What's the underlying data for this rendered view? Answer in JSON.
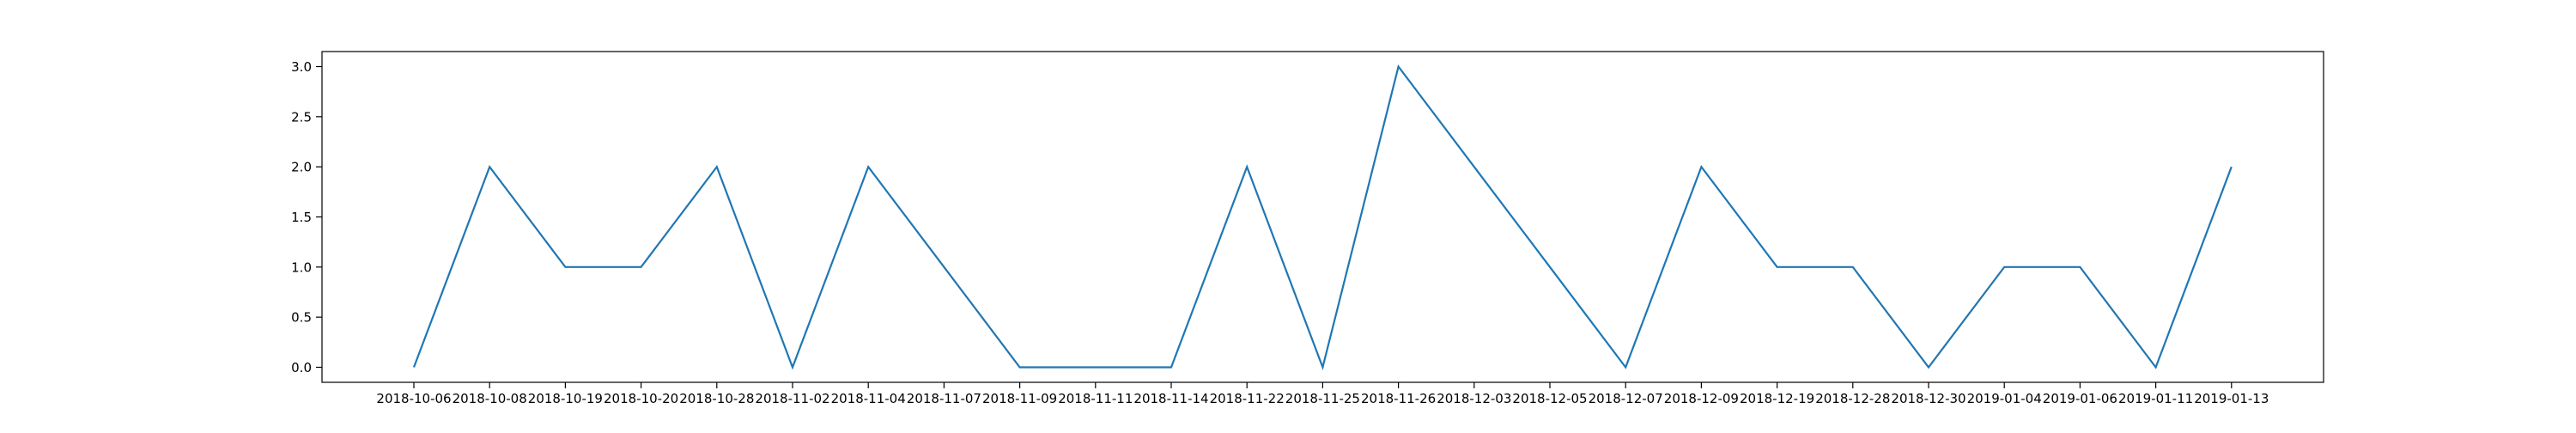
{
  "chart_data": {
    "type": "line",
    "title": "",
    "xlabel": "",
    "ylabel": "",
    "categories": [
      "2018-10-06",
      "2018-10-08",
      "2018-10-19",
      "2018-10-20",
      "2018-10-28",
      "2018-11-02",
      "2018-11-04",
      "2018-11-07",
      "2018-11-09",
      "2018-11-11",
      "2018-11-14",
      "2018-11-22",
      "2018-11-25",
      "2018-11-26",
      "2018-12-03",
      "2018-12-05",
      "2018-12-07",
      "2018-12-09",
      "2018-12-19",
      "2018-12-28",
      "2018-12-30",
      "2019-01-04",
      "2019-01-06",
      "2019-01-11",
      "2019-01-13"
    ],
    "series": [
      {
        "values": [
          0,
          2,
          1,
          1,
          2,
          0,
          2,
          1,
          0,
          0,
          0,
          2,
          0,
          3,
          2,
          1,
          0,
          2,
          1,
          1,
          0,
          1,
          1,
          0,
          2
        ],
        "color": "#1f77b4"
      }
    ],
    "ylim": [
      -0.15,
      3.15
    ],
    "yticks": [
      0.0,
      0.5,
      1.0,
      1.5,
      2.0,
      2.5,
      3.0
    ],
    "ytick_labels": [
      "0.0",
      "0.5",
      "1.0",
      "1.5",
      "2.0",
      "2.5",
      "3.0"
    ],
    "grid": false,
    "legend": "none"
  }
}
